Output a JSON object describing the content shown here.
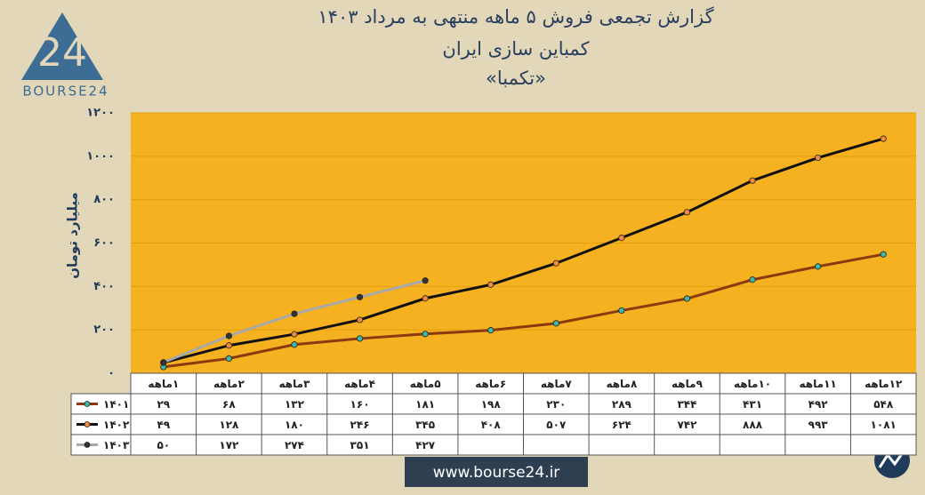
{
  "chart_data": {
    "type": "line",
    "title": "گزارش تجمعی فروش ۵ ماهه منتهی به مرداد ۱۴۰۳",
    "subtitle": "کمباین سازی ایران",
    "subtitle2": "«تکمبا»",
    "y_label": "میلیارد تومان",
    "categories": [
      "۱ماهه",
      "۲ماهه",
      "۳ماهه",
      "۴ماهه",
      "۵ماهه",
      "۶ماهه",
      "۷ماهه",
      "۸ماهه",
      "۹ماهه",
      "۱۰ماهه",
      "۱۱ماهه",
      "۱۲ماهه"
    ],
    "series": [
      {
        "name": "۱۴۰۱",
        "color": "#8b3a10",
        "marker_color": "#3cb8a8",
        "values": [
          29,
          68,
          132,
          160,
          181,
          198,
          230,
          289,
          344,
          431,
          492,
          548
        ],
        "value_labels": [
          "۲۹",
          "۶۸",
          "۱۳۲",
          "۱۶۰",
          "۱۸۱",
          "۱۹۸",
          "۲۳۰",
          "۲۸۹",
          "۳۴۴",
          "۴۳۱",
          "۴۹۲",
          "۵۴۸"
        ]
      },
      {
        "name": "۱۴۰۲",
        "color": "#111111",
        "marker_color": "#f08a3c",
        "values": [
          49,
          128,
          180,
          246,
          345,
          408,
          507,
          624,
          742,
          888,
          993,
          1081
        ],
        "value_labels": [
          "۴۹",
          "۱۲۸",
          "۱۸۰",
          "۲۴۶",
          "۳۴۵",
          "۴۰۸",
          "۵۰۷",
          "۶۲۴",
          "۷۴۲",
          "۸۸۸",
          "۹۹۳",
          "۱۰۸۱"
        ]
      },
      {
        "name": "۱۴۰۳",
        "color": "#a8a8a8",
        "marker_color": "#333333",
        "values": [
          50,
          172,
          274,
          351,
          427,
          null,
          null,
          null,
          null,
          null,
          null,
          null
        ],
        "value_labels": [
          "۵۰",
          "۱۷۲",
          "۲۷۴",
          "۳۵۱",
          "۴۲۷",
          null,
          null,
          null,
          null,
          null,
          null,
          null
        ]
      }
    ],
    "ylim": [
      0,
      1200
    ],
    "yticks": [
      {
        "value": 0,
        "label": "۰"
      },
      {
        "value": 200,
        "label": "۲۰۰"
      },
      {
        "value": 400,
        "label": "۴۰۰"
      },
      {
        "value": 600,
        "label": "۶۰۰"
      },
      {
        "value": 800,
        "label": "۸۰۰"
      },
      {
        "value": 1000,
        "label": "۱۰۰۰"
      },
      {
        "value": 1200,
        "label": "۱۲۰۰"
      }
    ],
    "grid": true,
    "plot_color": "#f5b120"
  },
  "logo": {
    "mark": "24",
    "text": "BOURSE24"
  },
  "website": "www.bourse24.ir"
}
